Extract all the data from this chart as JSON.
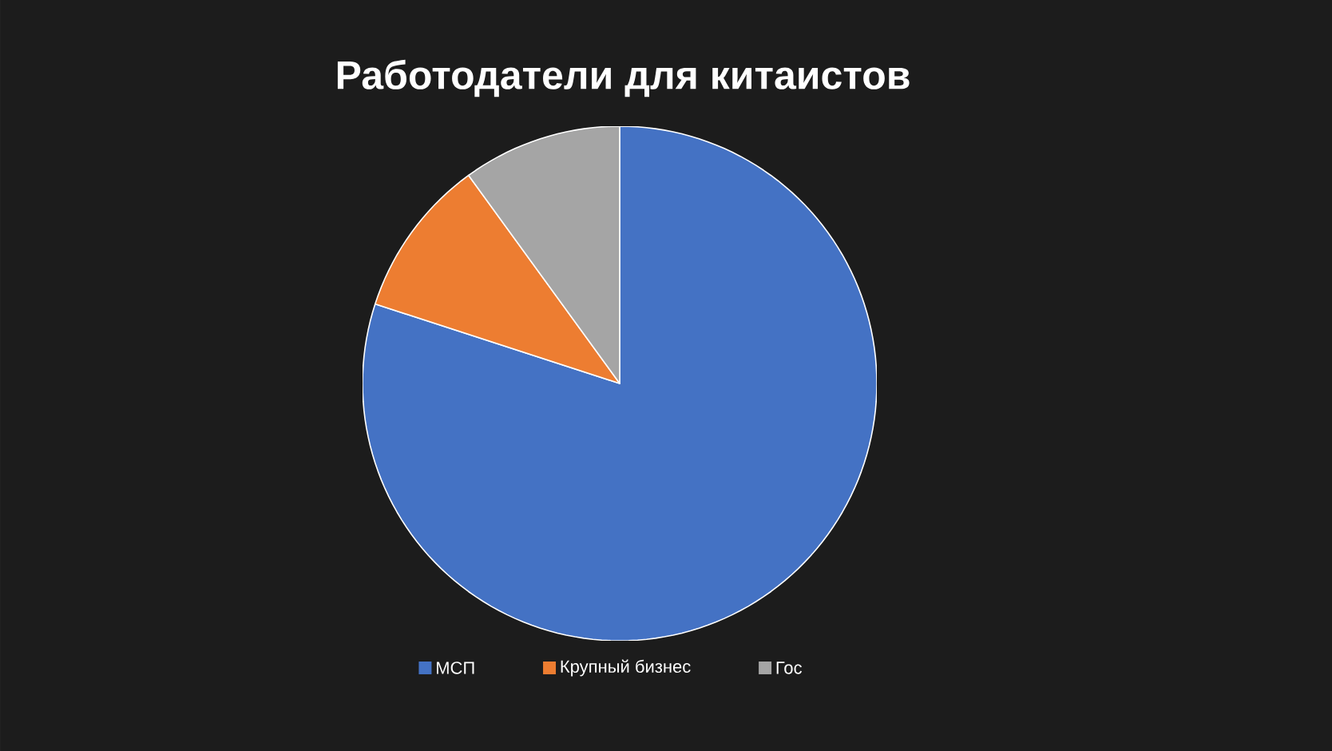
{
  "chart_data": {
    "type": "pie",
    "title": "Работодатели для китаистов",
    "categories": [
      "МСП",
      "Крупный бизнес",
      "Гос"
    ],
    "values": [
      80,
      10,
      10
    ],
    "colors": [
      "#4472c4",
      "#ed7d31",
      "#a5a5a5"
    ],
    "legend": "bottom"
  }
}
